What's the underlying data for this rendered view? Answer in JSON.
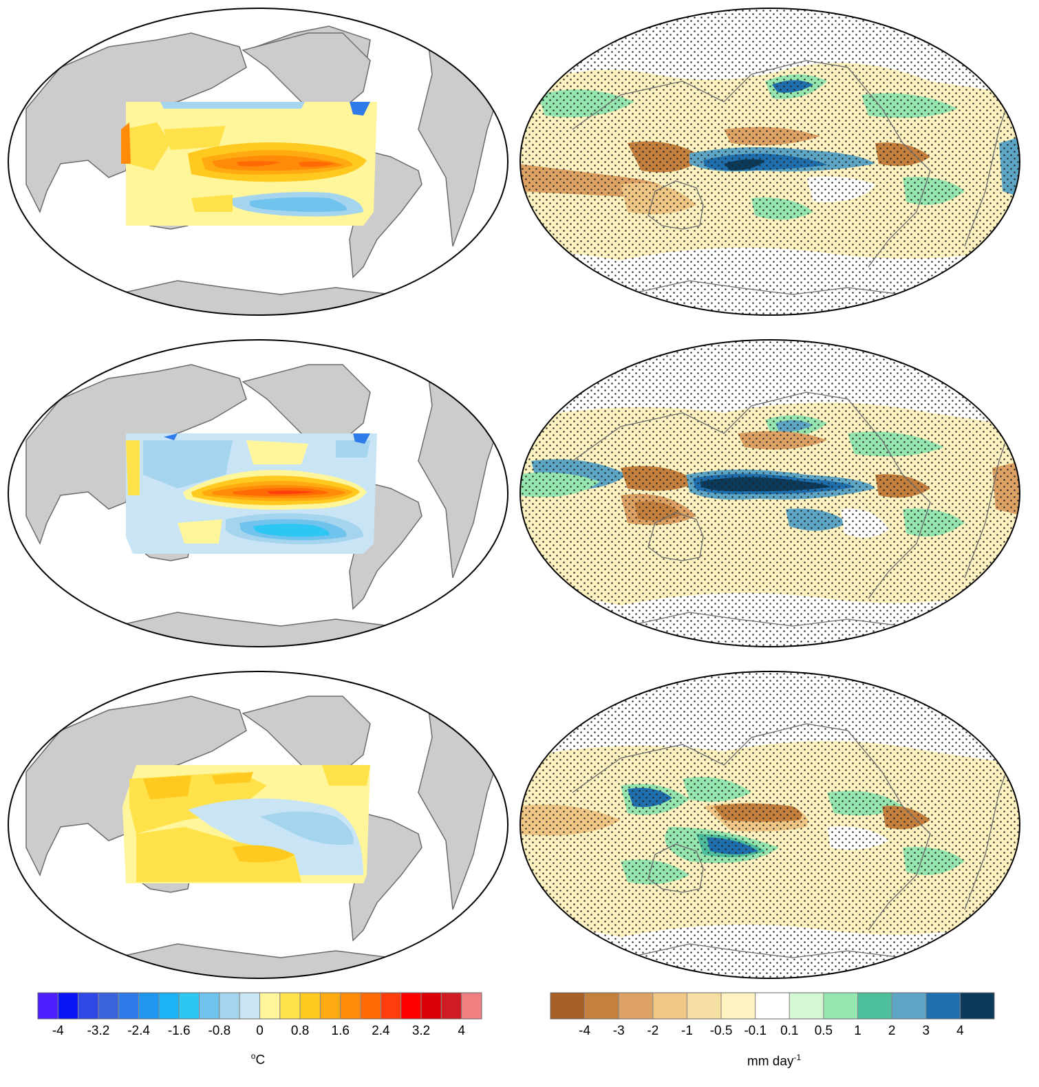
{
  "figure": {
    "rows": [
      {
        "name": "row-1",
        "sst_region": "tropical-pacific",
        "precip_pattern": "el-nino-strong"
      },
      {
        "name": "row-2",
        "sst_region": "tropical-pacific",
        "precip_pattern": "el-nino-canonical"
      },
      {
        "name": "row-3",
        "sst_region": "tropical-pacific",
        "precip_pattern": "la-nina-like"
      }
    ]
  },
  "sst_colorbar": {
    "colors": [
      "#4b1fff",
      "#0b14f5",
      "#2f47e6",
      "#3b63dc",
      "#2f7be9",
      "#2196f0",
      "#1cb2f5",
      "#2ec6f2",
      "#70c3ec",
      "#a5d4ef",
      "#c9e5f5",
      "#fff59a",
      "#ffe14a",
      "#ffc91f",
      "#ffaa10",
      "#ff8b08",
      "#ff6a05",
      "#ff3d0d",
      "#ff0000",
      "#d90006",
      "#cf1c22",
      "#f08080"
    ],
    "ticks": [
      "-4",
      "-3.2",
      "-2.4",
      "-1.6",
      "-0.8",
      "0",
      "0.8",
      "1.6",
      "2.4",
      "3.2",
      "4"
    ],
    "label": "oC",
    "label_base": "C",
    "label_sup": "o"
  },
  "precip_colorbar": {
    "colors": [
      "#a85f25",
      "#c6803e",
      "#dea265",
      "#f0c785",
      "#f5dea2",
      "#fdf2c0",
      "#ffffff",
      "#d4f7d4",
      "#96e6b0",
      "#4dbf9c",
      "#5ea6c6",
      "#1f6fae",
      "#0b3a5a"
    ],
    "ticks": [
      "-4",
      "-3",
      "-2",
      "-1",
      "-0.5",
      "-0.1",
      "0.1",
      "0.5",
      "1",
      "2",
      "3",
      "4"
    ],
    "label": "mm day-1",
    "label_base": "mm day",
    "label_sup": "-1"
  }
}
